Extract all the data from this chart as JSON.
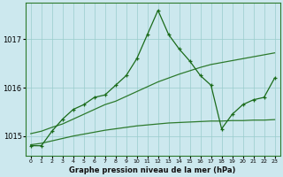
{
  "title": "Graphe pression niveau de la mer (hPa)",
  "background_color": "#cce8ee",
  "grid_color": "#99cccc",
  "line_color_main": "#1a6b1a",
  "line_color_band1": "#2d7a2d",
  "line_color_band2": "#2d7a2d",
  "xlim": [
    -0.5,
    23.5
  ],
  "ylim": [
    1014.6,
    1017.75
  ],
  "yticks": [
    1015,
    1016,
    1017
  ],
  "xticks": [
    0,
    1,
    2,
    3,
    4,
    5,
    6,
    7,
    8,
    9,
    10,
    11,
    12,
    13,
    14,
    15,
    16,
    17,
    18,
    19,
    20,
    21,
    22,
    23
  ],
  "hours": [
    0,
    1,
    2,
    3,
    4,
    5,
    6,
    7,
    8,
    9,
    10,
    11,
    12,
    13,
    14,
    15,
    16,
    17,
    18,
    19,
    20,
    21,
    22,
    23
  ],
  "pressure_main": [
    1014.8,
    1014.8,
    1015.1,
    1015.35,
    1015.55,
    1015.65,
    1015.8,
    1015.85,
    1016.05,
    1016.25,
    1016.6,
    1017.1,
    1017.6,
    1017.1,
    1016.8,
    1016.55,
    1016.25,
    1016.05,
    1015.15,
    1015.45,
    1015.65,
    1015.75,
    1015.8,
    1016.2
  ],
  "pressure_upper": [
    1015.05,
    1015.1,
    1015.18,
    1015.25,
    1015.35,
    1015.45,
    1015.55,
    1015.65,
    1015.72,
    1015.82,
    1015.92,
    1016.02,
    1016.12,
    1016.2,
    1016.28,
    1016.35,
    1016.42,
    1016.48,
    1016.52,
    1016.56,
    1016.6,
    1016.64,
    1016.68,
    1016.72
  ],
  "pressure_lower": [
    1014.82,
    1014.85,
    1014.9,
    1014.95,
    1015.0,
    1015.04,
    1015.08,
    1015.12,
    1015.15,
    1015.18,
    1015.21,
    1015.23,
    1015.25,
    1015.27,
    1015.28,
    1015.29,
    1015.3,
    1015.31,
    1015.31,
    1015.32,
    1015.32,
    1015.33,
    1015.33,
    1015.34
  ]
}
